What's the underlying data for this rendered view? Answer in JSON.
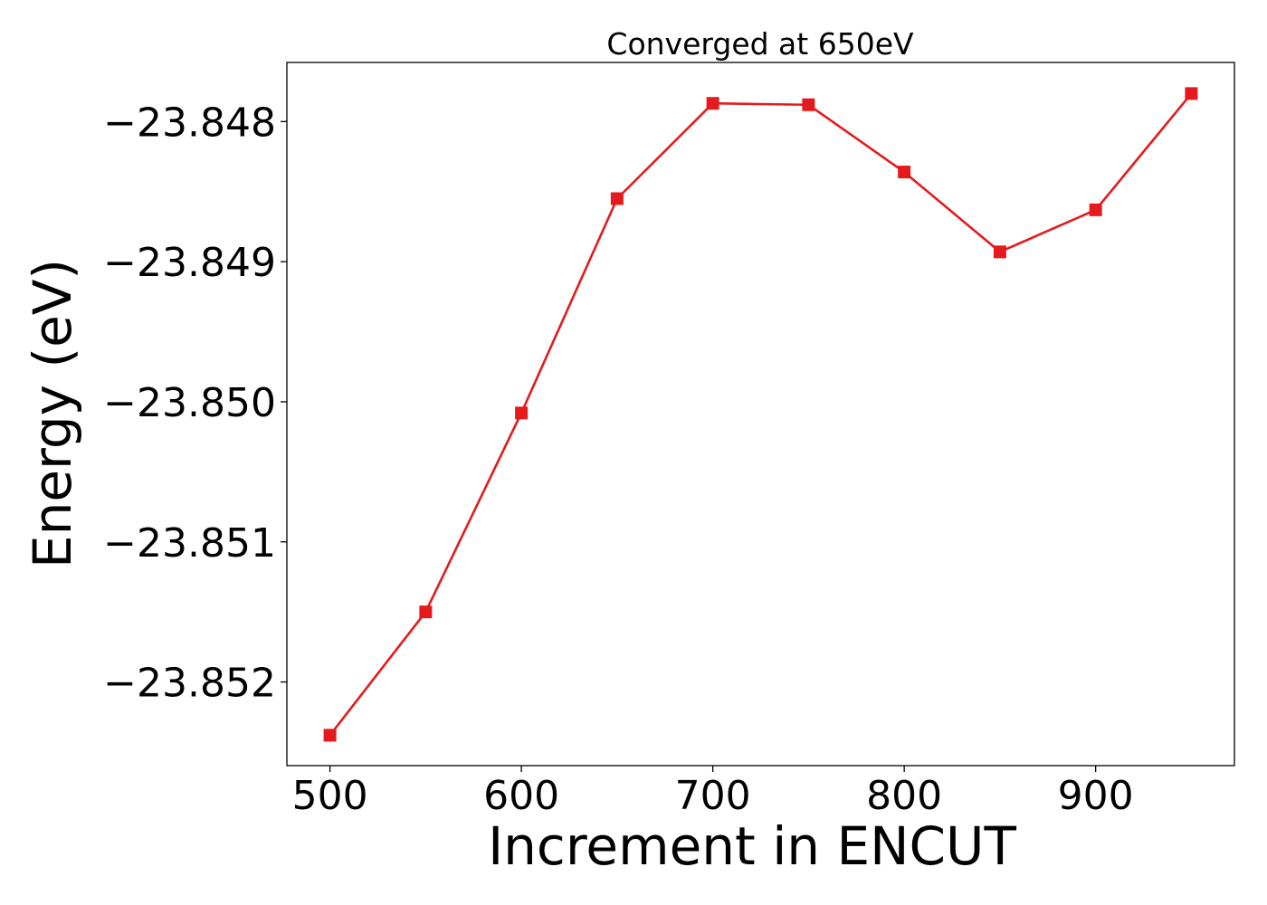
{
  "chart_data": {
    "type": "line",
    "title": "Converged at 650eV",
    "xlabel": "Increment in ENCUT",
    "ylabel": "Energy (eV)",
    "x": [
      500,
      550,
      600,
      650,
      700,
      750,
      800,
      850,
      900,
      950
    ],
    "series": [
      {
        "values": [
          -23.85238,
          -23.8515,
          -23.85008,
          -23.84855,
          -23.84787,
          -23.84788,
          -23.84836,
          -23.84893,
          -23.84863,
          -23.8478
        ],
        "color": "#e41a1c",
        "marker": "square"
      }
    ],
    "xticks": [
      500,
      600,
      700,
      800,
      900
    ],
    "xtick_labels": [
      "500",
      "600",
      "700",
      "800",
      "900"
    ],
    "yticks": [
      -23.848,
      -23.849,
      -23.85,
      -23.851,
      -23.852
    ],
    "ytick_labels": [
      "−23.848",
      "−23.849",
      "−23.850",
      "−23.851",
      "−23.852"
    ],
    "xlim": [
      477.5,
      972.5
    ],
    "ylim": [
      -23.852597,
      -23.847578
    ],
    "grid": false,
    "legend": "none"
  }
}
